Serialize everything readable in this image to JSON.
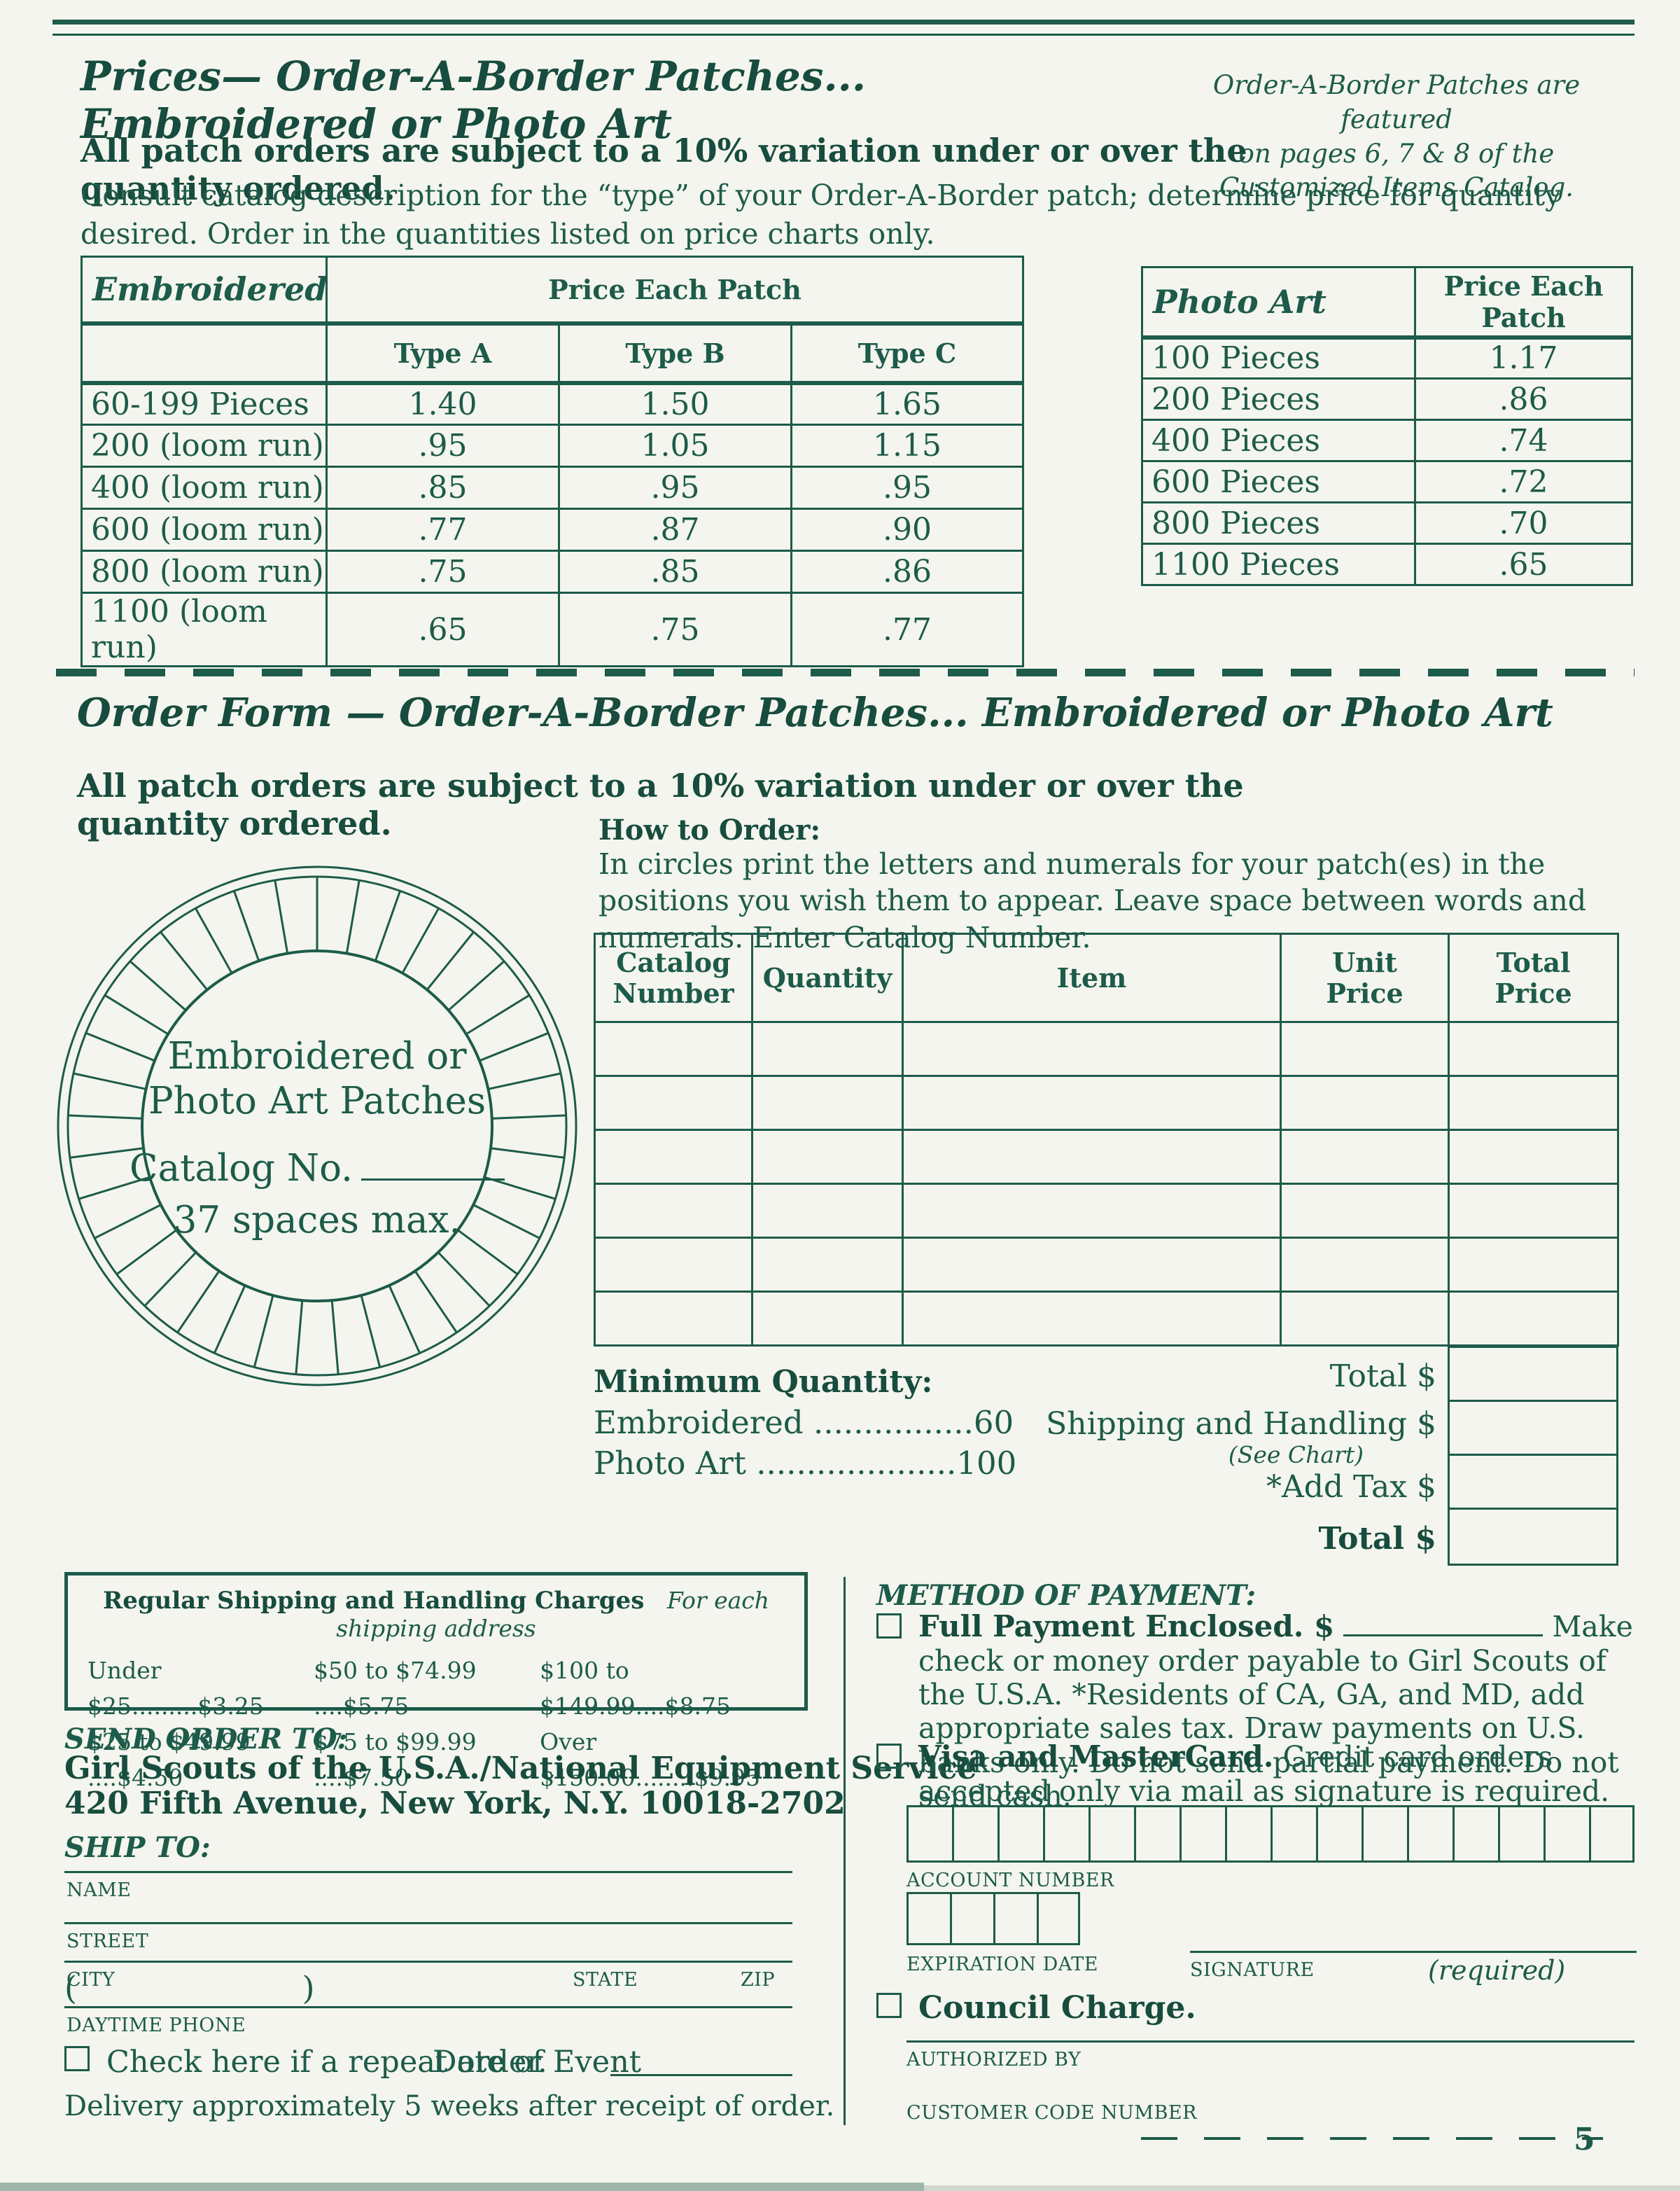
{
  "page_number": "5",
  "prices": {
    "title": "Prices— Order-A-Border Patches... Embroidered or Photo Art",
    "note1": "Order-A-Border Patches are featured",
    "note2": "on pages 6, 7 & 8 of the",
    "note3": "Customized Items Catalog.",
    "variation": "All patch orders are subject to a 10% variation under or over the quantity ordered.",
    "consult": "Consult catalog description for the “type” of your Order-A-Border patch; determine price for quantity desired. Order in the quantities listed on price charts only.",
    "embroidered": {
      "corner": "Embroidered",
      "price_header": "Price Each Patch",
      "type_a": "Type A",
      "type_b": "Type B",
      "type_c": "Type C",
      "rows": [
        {
          "label": "60-199 Pieces",
          "a": "1.40",
          "b": "1.50",
          "c": "1.65"
        },
        {
          "label": "200 (loom run)",
          "a": ".95",
          "b": "1.05",
          "c": "1.15"
        },
        {
          "label": "400 (loom run)",
          "a": ".85",
          "b": ".95",
          "c": ".95"
        },
        {
          "label": "600 (loom run)",
          "a": ".77",
          "b": ".87",
          "c": ".90"
        },
        {
          "label": "800 (loom run)",
          "a": ".75",
          "b": ".85",
          "c": ".86"
        },
        {
          "label": "1100 (loom run)",
          "a": ".65",
          "b": ".75",
          "c": ".77"
        }
      ]
    },
    "photo": {
      "corner": "Photo Art",
      "price_header": "Price Each Patch",
      "rows": [
        {
          "label": "100 Pieces",
          "price": "1.17"
        },
        {
          "label": "200 Pieces",
          "price": ".86"
        },
        {
          "label": "400 Pieces",
          "price": ".74"
        },
        {
          "label": "600 Pieces",
          "price": ".72"
        },
        {
          "label": "800 Pieces",
          "price": ".70"
        },
        {
          "label": "1100 Pieces",
          "price": ".65"
        }
      ]
    }
  },
  "order": {
    "title": "Order Form  — Order-A-Border Patches... Embroidered or Photo Art",
    "variation": "All patch orders are subject to a 10% variation under or over the quantity ordered.",
    "how_heading": "How to Order:",
    "how_body": "In circles print the letters and numerals for your patch(es) in the positions you wish them to appear. Leave space between words and numerals. Enter Catalog Number.",
    "circle": {
      "line1": "Embroidered or",
      "line2": "Photo Art Patches",
      "catalog": "Catalog No.",
      "spaces": "37 spaces max."
    },
    "table_headers": {
      "catalog": "Catalog\nNumber",
      "quantity": "Quantity",
      "item": "Item",
      "unit": "Unit\nPrice",
      "total": "Total\nPrice"
    },
    "min_heading": "Minimum Quantity:",
    "min_embroidered": "Embroidered ................60",
    "min_photo": "Photo Art ....................100",
    "total1": "Total $",
    "shipping_label": "Shipping and Handling $",
    "see_chart": "(See Chart)",
    "tax": "*Add Tax $",
    "total2": "Total $"
  },
  "shipping_chart": {
    "title": "Regular Shipping and Handling Charges",
    "subtitle": "For each shipping address",
    "c1l1": "Under $25.........$3.25",
    "c1l2": "$25 to $49.99 ....$4.50",
    "c2l1": "$50 to $74.99 ....$5.75",
    "c2l2": "$75 to $99.99 ....$7.50",
    "c3l1": "$100 to $149.99....$8.75",
    "c3l2": "Over $150.00........$9.95"
  },
  "ship": {
    "send_heading": "SEND ORDER TO:",
    "org": "Girl Scouts of the U.S.A./National Equipment Service",
    "address": "420 Fifth Avenue, New York, N.Y. 10018-2702",
    "ship_heading": "SHIP TO:",
    "name": "NAME",
    "street": "STREET",
    "city": "CITY",
    "state": "STATE",
    "zip": "ZIP",
    "paren": "(                      )",
    "daytime": "DAYTIME PHONE",
    "repeat": "Check here if a repeat order.",
    "date_event": "Date of Event",
    "delivery": "Delivery approximately 5 weeks after receipt of order."
  },
  "payment": {
    "heading": "METHOD OF PAYMENT:",
    "full_bold": "Full Payment Enclosed. $",
    "full_rest": "Make check or money order payable to Girl Scouts of the U.S.A. *Residents of CA, GA, and MD, add appropriate sales tax. Draw payments on U.S. banks only. Do not send partial payment. Do not send cash.",
    "visa_bold": "Visa and MasterCard.",
    "visa_rest": "Credit card orders accepted only via mail as signature is required.",
    "account": "ACCOUNT NUMBER",
    "expiration": "EXPIRATION DATE",
    "signature": "SIGNATURE",
    "required": "(required)",
    "council": "Council Charge.",
    "authorized": "AUTHORIZED BY",
    "customer_code": "CUSTOMER CODE NUMBER"
  }
}
